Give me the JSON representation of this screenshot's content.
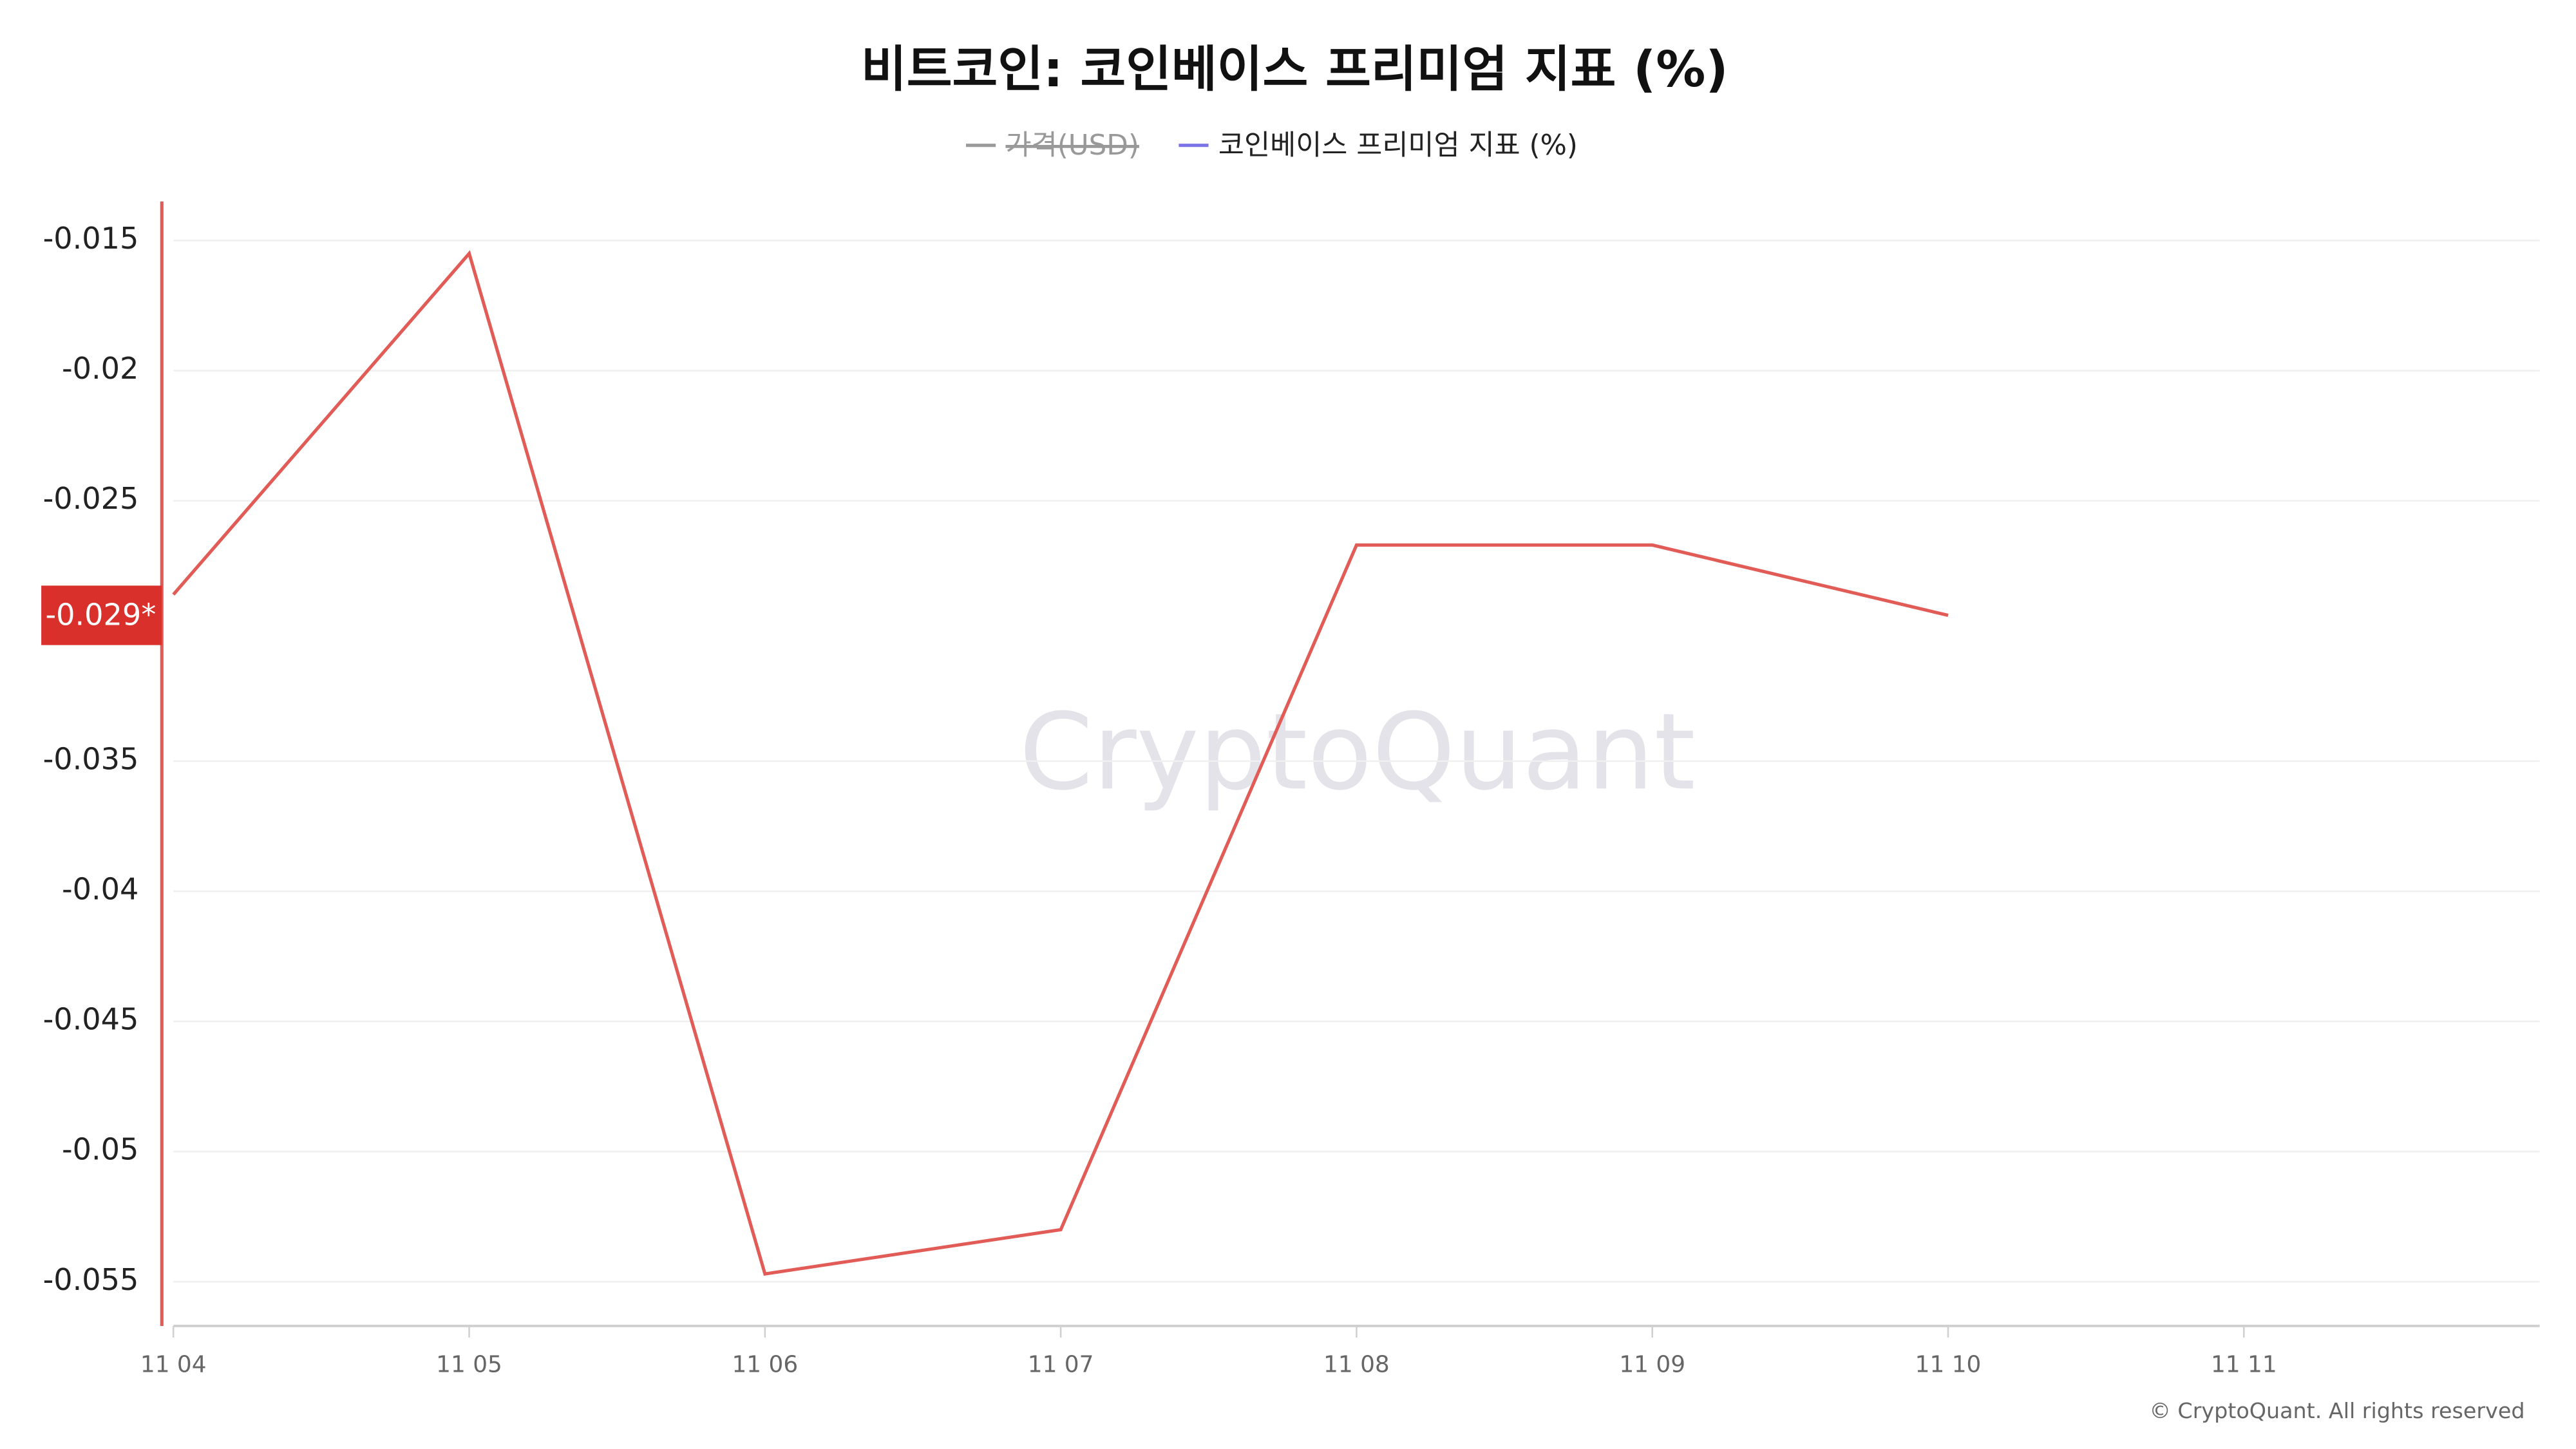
{
  "chart_data": {
    "type": "line",
    "title": "비트코인: 코인베이스 프리미엄 지표 (%)",
    "categories": [
      "11 04",
      "11 05",
      "11 06",
      "11 07",
      "11 08",
      "11 09",
      "11 10",
      "11 11"
    ],
    "series": [
      {
        "name": "가격(USD)",
        "color": "#9a9a9a",
        "visible": false,
        "values": [
          null,
          null,
          null,
          null,
          null,
          null,
          null,
          null
        ]
      },
      {
        "name": "코인베이스 프리미엄 지표 (%)",
        "color": "#e25c57",
        "legend_color": "#7c73e6",
        "visible": true,
        "values": [
          -0.0286,
          -0.0155,
          -0.0547,
          -0.053,
          -0.0267,
          -0.0267,
          -0.0294,
          null
        ],
        "value_labels": [
          null,
          null,
          null,
          null,
          null,
          null,
          "-0.029*",
          null
        ]
      }
    ],
    "ylim": [
      -0.0567,
      -0.0135
    ],
    "yticks": [
      -0.015,
      -0.02,
      -0.025,
      -0.035,
      -0.04,
      -0.045,
      -0.05,
      -0.055
    ],
    "grid": true,
    "legend": "top",
    "watermark": "CryptoQuant",
    "footer": "© CryptoQuant. All rights reserved"
  }
}
